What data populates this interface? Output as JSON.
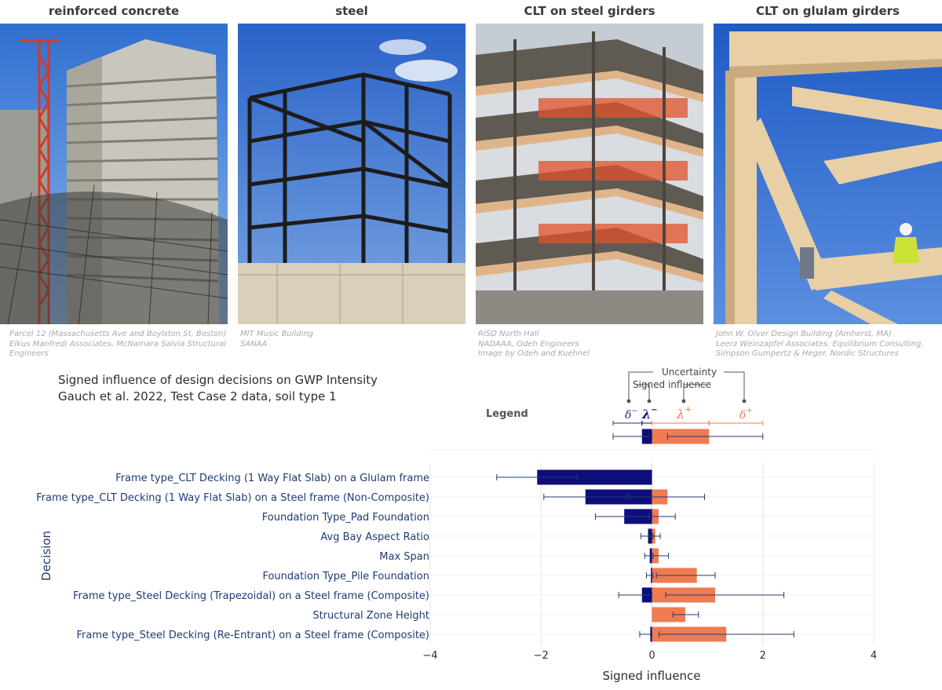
{
  "photos": [
    {
      "title": "reinforced concrete",
      "caption": [
        "Parcel 12 (Massachusetts Ave and Boylston St, Boston)",
        "Elkus Manfredi Associates, McNamara Salvia Structural",
        "Engineers"
      ]
    },
    {
      "title": "steel",
      "caption": [
        "MIT Music Building",
        "SANAA"
      ]
    },
    {
      "title": "CLT on steel girders",
      "caption": [
        "RISD North Hall",
        "NADAAA, Odeh Engineers",
        "Image by Odeh and Kuehnel"
      ]
    },
    {
      "title": "CLT on glulam girders",
      "caption": [
        "John W. Olver Design Building (Amherst, MA)",
        "Leerz Weinzapfel Associates, Equilibrium Consulting,",
        "Simpson Gumpertz & Heger, Nordic Structures"
      ]
    }
  ],
  "chart_title": {
    "line1": "Signed influence of design decisions on GWP Intensity",
    "line2": "Gauch et al. 2022, Test Case 2 data, soil type 1"
  },
  "legend": {
    "title": "Legend",
    "uncertainty": "Uncertainty",
    "signed_influence": "Signed influence",
    "sym_delta_minus": "δ",
    "sym_lambda_minus": "λ",
    "sym_lambda_plus": "λ",
    "sym_delta_plus": "δ",
    "sup_minus": "−",
    "sup_plus": "+"
  },
  "colors": {
    "negative": "#0d0e7a",
    "positive": "#ef7b50",
    "error": "#253a74",
    "grid": "#e8e8e8",
    "zero": "#d0d0d0"
  },
  "chart_data": {
    "type": "bar",
    "orientation": "horizontal",
    "xlabel": "Signed influence",
    "ylabel": "Decision",
    "xlim": [
      -4,
      4
    ],
    "xticks": [
      "−4",
      "−2",
      "0",
      "2",
      "4"
    ],
    "xtick_values": [
      -4,
      -2,
      0,
      2,
      4
    ],
    "legend_example": {
      "neg": -0.18,
      "neg_err": [
        -0.7,
        0.0
      ],
      "pos": 1.03,
      "pos_err": [
        0.28,
        2.0
      ]
    },
    "categories": [
      "Frame type_CLT Decking (1 Way Flat Slab) on a Glulam frame",
      "Frame type_CLT Decking (1 Way Flat Slab) on a Steel frame (Non-Composite)",
      "Foundation Type_Pad Foundation",
      "Avg Bay Aspect Ratio",
      "Max Span",
      "Foundation Type_Pile Foundation",
      "Frame type_Steel Decking (Trapezoidal) on a Steel frame (Composite)",
      "Structural Zone Height",
      "Frame type_Steel Decking (Re-Entrant) on a Steel frame (Composite)"
    ],
    "series": [
      {
        "values": [
          -2.07,
          -1.2,
          -0.5,
          -0.07,
          -0.04,
          -0.02,
          -0.18,
          0.0,
          -0.03
        ],
        "err_low": [
          -2.8,
          -1.95,
          -1.02,
          -0.2,
          -0.13,
          -0.1,
          -0.6,
          0.0,
          -0.22
        ],
        "err_high": [
          -1.35,
          -0.45,
          0.0,
          0.02,
          0.02,
          0.02,
          0.0,
          0.0,
          0.0
        ]
      },
      {
        "values": [
          0.0,
          0.28,
          0.12,
          0.06,
          0.12,
          0.81,
          1.14,
          0.6,
          1.34
        ],
        "err_low": [
          0.0,
          -0.4,
          -0.05,
          0.0,
          0.0,
          0.08,
          0.25,
          0.38,
          0.13
        ],
        "err_high": [
          0.0,
          0.95,
          0.42,
          0.15,
          0.3,
          1.14,
          2.38,
          0.84,
          2.56
        ]
      }
    ]
  }
}
